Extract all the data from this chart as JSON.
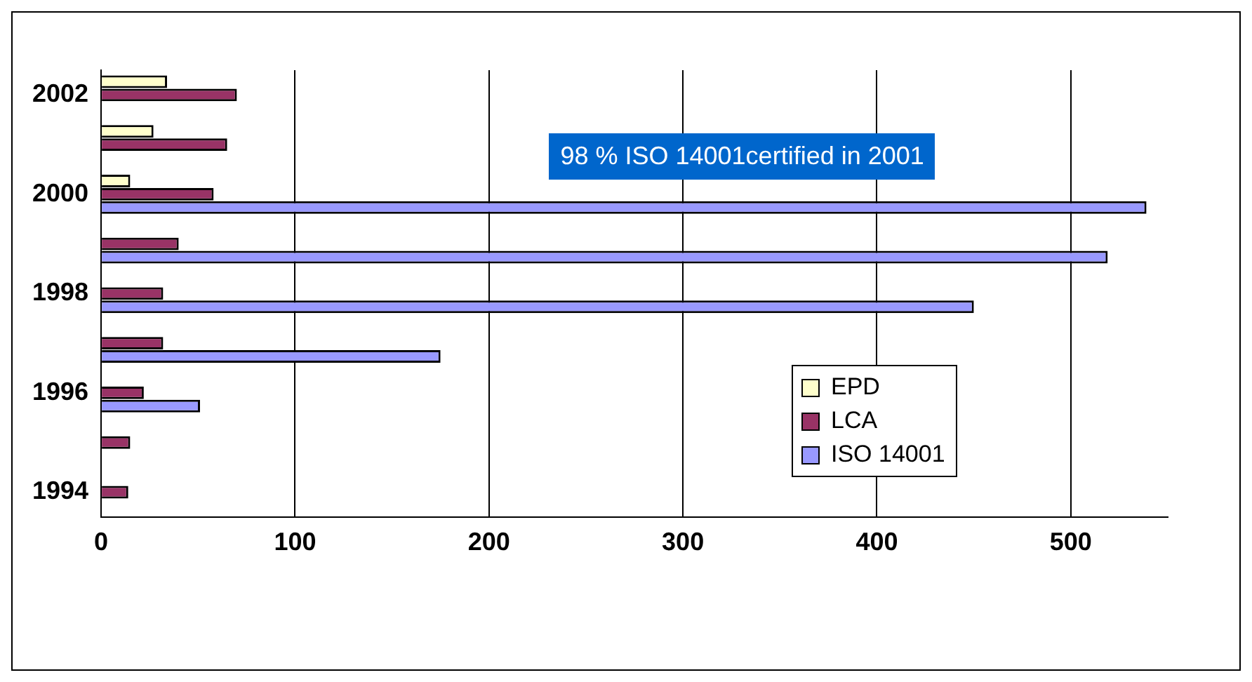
{
  "chart_data": {
    "type": "bar",
    "orientation": "horizontal",
    "categories": [
      "2002",
      null,
      "2000",
      null,
      "1998",
      null,
      "1996",
      null,
      "1994"
    ],
    "series": [
      {
        "name": "EPD",
        "color": "#ffffcc",
        "values": [
          34,
          27,
          15,
          null,
          null,
          null,
          null,
          null,
          null
        ]
      },
      {
        "name": "LCA",
        "color": "#993366",
        "values": [
          70,
          65,
          58,
          40,
          32,
          32,
          22,
          15,
          14
        ]
      },
      {
        "name": "ISO 14001",
        "color": "#9999ff",
        "values": [
          null,
          null,
          539,
          519,
          450,
          175,
          51,
          null,
          null
        ]
      }
    ],
    "xlim": [
      0,
      550
    ],
    "xticks": [
      0,
      100,
      200,
      300,
      400,
      500
    ],
    "grid": "x",
    "legend": "bottom right",
    "annotations": [
      "98 % ISO 14001certified in 2001"
    ]
  }
}
